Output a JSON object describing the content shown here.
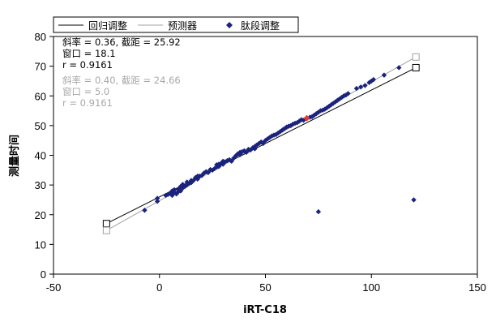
{
  "chart_data": {
    "type": "scatter",
    "xlabel": "iRT-C18",
    "ylabel": "测量时间",
    "xlim": [
      -50,
      150
    ],
    "ylim": [
      0,
      80
    ],
    "x_ticks": [
      "-50",
      "0",
      "50",
      "100",
      "150"
    ],
    "y_ticks": [
      "0",
      "10",
      "20",
      "30",
      "40",
      "50",
      "60",
      "70",
      "80"
    ],
    "grid": false,
    "legend": {
      "position": "top",
      "entries": [
        "回归调整",
        "预测器",
        "肽段调整"
      ]
    },
    "series": [
      {
        "name": "回归调整",
        "kind": "line",
        "color": "#000000",
        "points": [
          [
            -25,
            17.0
          ],
          [
            121,
            69.5
          ]
        ],
        "stats": [
          "斜率 = 0.36, 截距 = 25.92",
          "窗口 = 18.1",
          "r = 0.9161"
        ]
      },
      {
        "name": "预测器",
        "kind": "line",
        "color": "#a0a0a0",
        "points": [
          [
            -25,
            14.7
          ],
          [
            121,
            73.1
          ]
        ],
        "stats": [
          "斜率 = 0.40, 截距 = 24.66",
          "窗口 = 5.0",
          "r = 0.9161"
        ]
      },
      {
        "name": "肽段调整",
        "kind": "scatter",
        "color": "#1a237e",
        "highlight": {
          "x": 69.5,
          "y": 52.5,
          "color": "#e53935"
        },
        "points": [
          [
            -25,
            14.5
          ],
          [
            -7,
            21.5
          ],
          [
            -1,
            24.5
          ],
          [
            -1,
            25.5
          ],
          [
            3,
            26.5
          ],
          [
            4,
            26.8
          ],
          [
            5,
            27.2
          ],
          [
            6,
            26.5
          ],
          [
            6,
            28.0
          ],
          [
            7,
            27.5
          ],
          [
            7,
            28.4
          ],
          [
            8,
            27.0
          ],
          [
            9,
            28.5
          ],
          [
            9,
            27.8
          ],
          [
            10,
            28.0
          ],
          [
            10,
            29.5
          ],
          [
            11,
            29.0
          ],
          [
            11,
            30.2
          ],
          [
            12,
            29.5
          ],
          [
            13,
            31.0
          ],
          [
            13,
            30.0
          ],
          [
            14,
            30.5
          ],
          [
            15,
            31.5
          ],
          [
            15,
            30.8
          ],
          [
            16,
            31.5
          ],
          [
            17,
            32.5
          ],
          [
            18,
            32.0
          ],
          [
            18,
            33.0
          ],
          [
            19,
            33.0
          ],
          [
            20,
            33.2
          ],
          [
            21,
            34.0
          ],
          [
            22,
            34.5
          ],
          [
            23,
            34.2
          ],
          [
            24,
            35.2
          ],
          [
            25,
            35.0
          ],
          [
            26,
            35.5
          ],
          [
            27,
            36.0
          ],
          [
            27,
            36.8
          ],
          [
            28,
            37.0
          ],
          [
            28,
            36.2
          ],
          [
            29,
            37.2
          ],
          [
            30,
            37.0
          ],
          [
            30,
            38.0
          ],
          [
            31,
            37.8
          ],
          [
            32,
            38.2
          ],
          [
            33,
            38.5
          ],
          [
            34,
            38.0
          ],
          [
            35,
            39.0
          ],
          [
            36,
            39.8
          ],
          [
            37,
            40.5
          ],
          [
            38,
            41.0
          ],
          [
            38,
            40.2
          ],
          [
            39,
            41.2
          ],
          [
            40,
            41.5
          ],
          [
            41,
            41.0
          ],
          [
            42,
            42.0
          ],
          [
            43,
            41.8
          ],
          [
            44,
            42.5
          ],
          [
            45,
            43.0
          ],
          [
            45,
            42.2
          ],
          [
            46,
            43.5
          ],
          [
            47,
            44.0
          ],
          [
            48,
            44.5
          ],
          [
            49,
            44.0
          ],
          [
            50,
            45.0
          ],
          [
            51,
            45.5
          ],
          [
            52,
            46.0
          ],
          [
            53,
            46.5
          ],
          [
            54,
            46.8
          ],
          [
            55,
            47.0
          ],
          [
            56,
            47.5
          ],
          [
            57,
            48.0
          ],
          [
            58,
            48.5
          ],
          [
            59,
            49.0
          ],
          [
            60,
            49.5
          ],
          [
            61,
            49.8
          ],
          [
            62,
            50.0
          ],
          [
            63,
            50.5
          ],
          [
            64,
            50.8
          ],
          [
            65,
            51.0
          ],
          [
            66,
            51.5
          ],
          [
            67,
            52.0
          ],
          [
            68,
            51.8
          ],
          [
            71,
            52.8
          ],
          [
            72,
            53.0
          ],
          [
            73,
            53.5
          ],
          [
            74,
            54.0
          ],
          [
            75,
            54.5
          ],
          [
            76,
            55.0
          ],
          [
            77,
            55.2
          ],
          [
            78,
            55.5
          ],
          [
            79,
            56.0
          ],
          [
            80,
            56.5
          ],
          [
            81,
            57.0
          ],
          [
            82,
            57.5
          ],
          [
            83,
            58.0
          ],
          [
            84,
            58.5
          ],
          [
            85,
            59.0
          ],
          [
            86,
            59.5
          ],
          [
            87,
            60.0
          ],
          [
            88,
            60.3
          ],
          [
            89,
            60.8
          ],
          [
            93,
            62.5
          ],
          [
            95,
            63.0
          ],
          [
            97,
            63.5
          ],
          [
            99,
            64.5
          ],
          [
            100,
            65.0
          ],
          [
            101,
            65.5
          ],
          [
            106,
            67.0
          ],
          [
            113,
            69.5
          ],
          [
            75,
            21.0
          ],
          [
            120,
            25.0
          ]
        ]
      }
    ]
  }
}
